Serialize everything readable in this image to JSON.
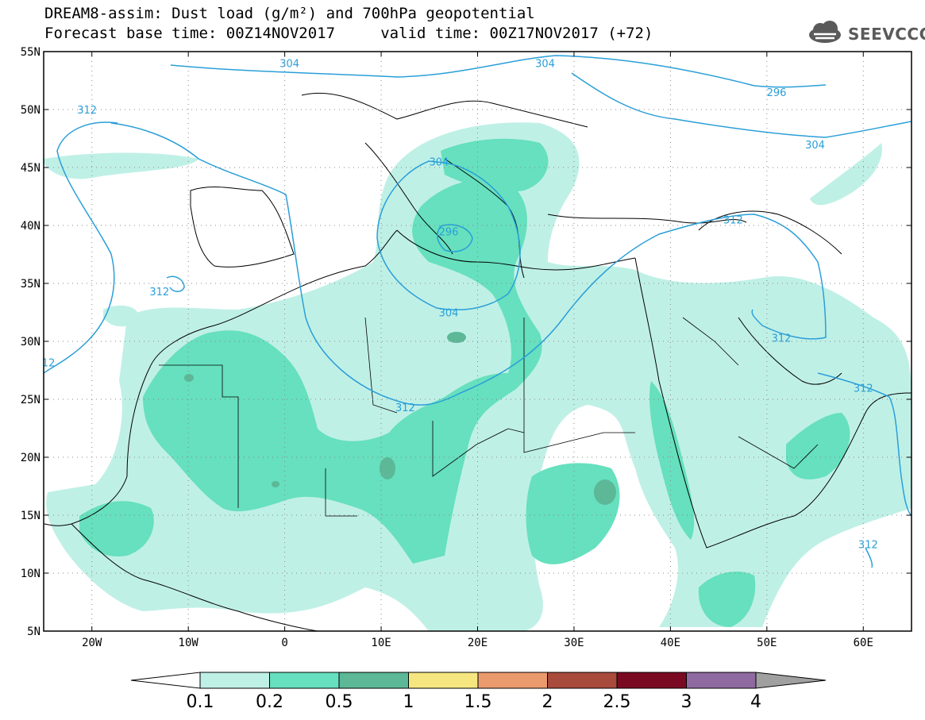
{
  "title_line1": "DREAM8-assim: Dust load (g/m²) and 700hPa geopotential",
  "title_line2": "Forecast base time: 00Z14NOV2017     valid time: 00Z17NOV2017 (+72)",
  "logo": {
    "text": "SEEVCCC",
    "icon": "cloud-logo-icon"
  },
  "map": {
    "lon_range": [
      -25,
      65
    ],
    "lat_range": [
      5,
      55
    ],
    "lat_ticks": [
      "55N",
      "50N",
      "45N",
      "40N",
      "35N",
      "30N",
      "25N",
      "20N",
      "15N",
      "10N",
      "5N"
    ],
    "lon_ticks": [
      "20W",
      "10W",
      "0",
      "10E",
      "20E",
      "30E",
      "40E",
      "50E",
      "60E"
    ],
    "grid": "dotted",
    "contour_labels": [
      {
        "text": "304",
        "lon": 27,
        "lat": 54
      },
      {
        "text": "304",
        "lon": 0.5,
        "lat": 54
      },
      {
        "text": "296",
        "lon": 51,
        "lat": 51.5
      },
      {
        "text": "304",
        "lon": 55,
        "lat": 47
      },
      {
        "text": "312",
        "lon": -20.5,
        "lat": 50
      },
      {
        "text": "304",
        "lon": 16,
        "lat": 45.5
      },
      {
        "text": "296",
        "lon": 17,
        "lat": 39.5
      },
      {
        "text": "312",
        "lon": 46.5,
        "lat": 40.5
      },
      {
        "text": "312",
        "lon": -13,
        "lat": 34.3
      },
      {
        "text": "304",
        "lon": 17,
        "lat": 32.5
      },
      {
        "text": "312",
        "lon": 51.5,
        "lat": 30.3
      },
      {
        "text": "12",
        "lon": -24.5,
        "lat": 28.2
      },
      {
        "text": "312",
        "lon": 60,
        "lat": 26
      },
      {
        "text": "312",
        "lon": 12.5,
        "lat": 24.3
      },
      {
        "text": "312",
        "lon": 60.5,
        "lat": 12.5
      }
    ]
  },
  "colorbar": {
    "labels": [
      "0.1",
      "0.2",
      "0.5",
      "1",
      "1.5",
      "2",
      "2.5",
      "3",
      "4"
    ],
    "colors": [
      "#ffffff",
      "#bff0e6",
      "#66e0be",
      "#5cb896",
      "#f5e680",
      "#eb9a6e",
      "#a84a3c",
      "#7a0a22",
      "#8f6aa1",
      "#a0a0a0"
    ]
  }
}
